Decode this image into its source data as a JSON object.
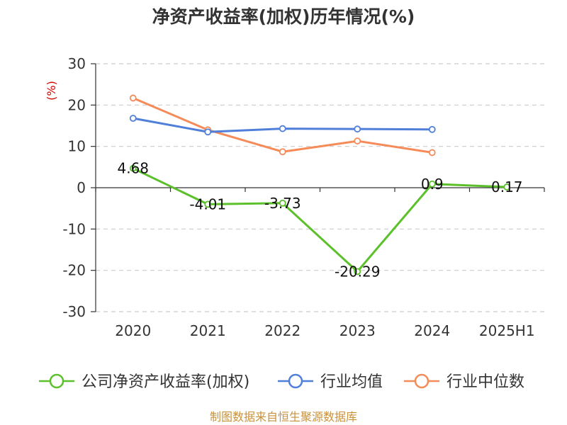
{
  "title": "净资产收益率(加权)历年情况(%)",
  "unit_label": "(%)",
  "source": "制图数据来自恒生聚源数据库",
  "chart_data": {
    "type": "line",
    "title": "净资产收益率(加权)历年情况(%)",
    "ylabel": "(%)",
    "categories": [
      "2020",
      "2021",
      "2022",
      "2023",
      "2024",
      "2025H1"
    ],
    "ylim": [
      -30,
      30
    ],
    "yticks": [
      30,
      20,
      10,
      0,
      -10,
      -20,
      -30
    ],
    "grid": true,
    "legend_position": "bottom",
    "series": [
      {
        "name": "公司净资产收益率(加权)",
        "color": "#5cc02a",
        "values": [
          4.68,
          -4.01,
          -3.73,
          -20.29,
          0.9,
          0.17
        ],
        "labels": [
          "4.68",
          "-4.01",
          "-3.73",
          "-20.29",
          "0.9",
          "0.17"
        ]
      },
      {
        "name": "行业均值",
        "color": "#4f7fd9",
        "values": [
          16.8,
          13.5,
          14.3,
          14.2,
          14.1,
          null
        ]
      },
      {
        "name": "行业中位数",
        "color": "#f68b5a",
        "values": [
          21.7,
          14.0,
          8.7,
          11.3,
          8.5,
          null
        ]
      }
    ]
  }
}
